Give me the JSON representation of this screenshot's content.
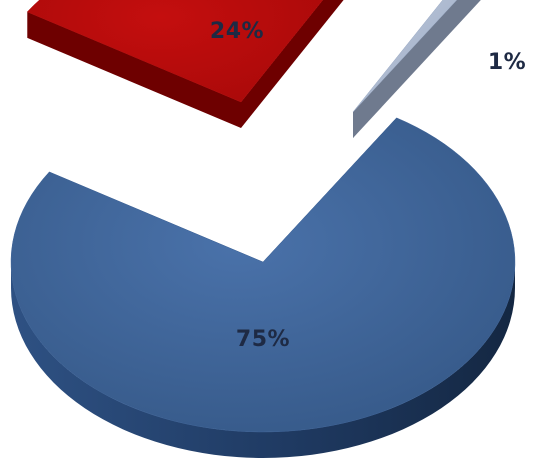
{
  "chart_data": {
    "type": "pie",
    "style": "3d-exploded",
    "title": "",
    "categories": [
      "",
      "",
      ""
    ],
    "values": [
      75,
      24,
      1
    ],
    "data_labels": [
      "75%",
      "24%",
      "1%"
    ],
    "colors": [
      "#3F6498",
      "#B10A0A",
      "#9FAEC8"
    ],
    "side_colors": [
      "#1F3A62",
      "#6E0000",
      "#6F7A8E"
    ],
    "label_color": "#1E2A44",
    "legend": "none"
  }
}
